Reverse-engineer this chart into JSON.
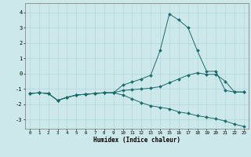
{
  "title": "",
  "xlabel": "Humidex (Indice chaleur)",
  "ylabel": "",
  "bg_color": "#cce8ea",
  "grid_color": "#b0d8dc",
  "line_color": "#1a6b6b",
  "xlim": [
    -0.5,
    23.5
  ],
  "ylim": [
    -3.6,
    4.6
  ],
  "yticks": [
    -3,
    -2,
    -1,
    0,
    1,
    2,
    3,
    4
  ],
  "xticks": [
    0,
    1,
    2,
    3,
    4,
    5,
    6,
    7,
    8,
    9,
    10,
    11,
    12,
    13,
    14,
    15,
    16,
    17,
    18,
    19,
    20,
    21,
    22,
    23
  ],
  "curve1_x": [
    0,
    1,
    2,
    3,
    4,
    5,
    6,
    7,
    8,
    9,
    10,
    11,
    12,
    13,
    14,
    15,
    16,
    17,
    18,
    19,
    20,
    21,
    22,
    23
  ],
  "curve1_y": [
    -1.3,
    -1.25,
    -1.3,
    -1.75,
    -1.55,
    -1.4,
    -1.35,
    -1.3,
    -1.25,
    -1.25,
    -0.75,
    -0.55,
    -0.35,
    -0.1,
    1.5,
    3.9,
    3.5,
    3.0,
    1.5,
    0.15,
    0.15,
    -1.1,
    -1.2,
    -1.2
  ],
  "curve2_x": [
    0,
    1,
    2,
    3,
    4,
    5,
    6,
    7,
    8,
    9,
    10,
    11,
    12,
    13,
    14,
    15,
    16,
    17,
    18,
    19,
    20,
    21,
    22,
    23
  ],
  "curve2_y": [
    -1.3,
    -1.25,
    -1.3,
    -1.75,
    -1.55,
    -1.4,
    -1.35,
    -1.3,
    -1.25,
    -1.25,
    -1.1,
    -1.05,
    -1.0,
    -0.95,
    -0.85,
    -0.6,
    -0.35,
    -0.1,
    0.05,
    -0.05,
    -0.05,
    -0.5,
    -1.2,
    -1.2
  ],
  "curve3_x": [
    0,
    1,
    2,
    3,
    4,
    5,
    6,
    7,
    8,
    9,
    10,
    11,
    12,
    13,
    14,
    15,
    16,
    17,
    18,
    19,
    20,
    21,
    22,
    23
  ],
  "curve3_y": [
    -1.3,
    -1.25,
    -1.3,
    -1.75,
    -1.55,
    -1.4,
    -1.35,
    -1.3,
    -1.25,
    -1.25,
    -1.4,
    -1.65,
    -1.9,
    -2.1,
    -2.2,
    -2.3,
    -2.5,
    -2.6,
    -2.75,
    -2.85,
    -2.95,
    -3.1,
    -3.3,
    -3.45
  ],
  "marker": "D",
  "marker_size": 2.0,
  "linewidth": 0.7
}
